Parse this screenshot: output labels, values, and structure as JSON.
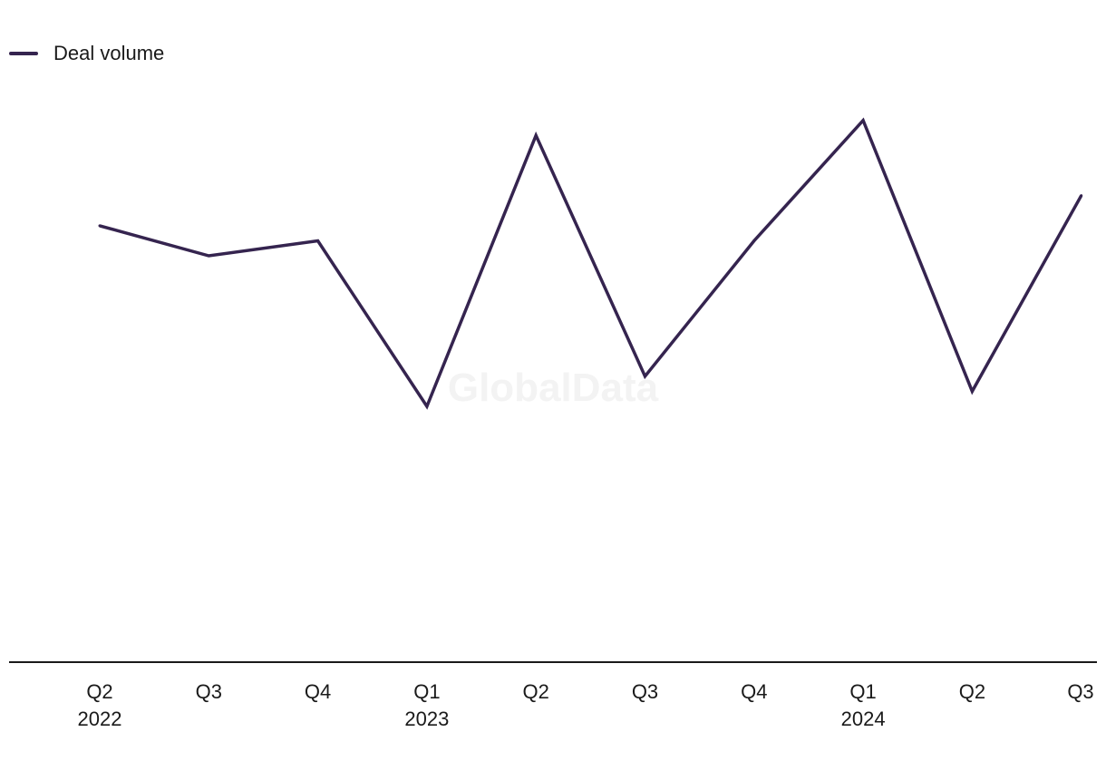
{
  "watermark": "GlobalData",
  "colors": {
    "series": "#35244f",
    "axis": "#1a1a1a"
  },
  "chart_data": {
    "type": "line",
    "title": "",
    "xlabel": "",
    "ylabel": "",
    "categories": [
      "Q2 2022",
      "Q3 2022",
      "Q4 2022",
      "Q1 2023",
      "Q2 2023",
      "Q3 2023",
      "Q4 2023",
      "Q1 2024",
      "Q2 2024",
      "Q3 2024"
    ],
    "x_tick_labels": [
      {
        "quarter": "Q2",
        "year": "2022"
      },
      {
        "quarter": "Q3",
        "year": ""
      },
      {
        "quarter": "Q4",
        "year": ""
      },
      {
        "quarter": "Q1",
        "year": "2023"
      },
      {
        "quarter": "Q2",
        "year": ""
      },
      {
        "quarter": "Q3",
        "year": ""
      },
      {
        "quarter": "Q4",
        "year": ""
      },
      {
        "quarter": "Q1",
        "year": "2024"
      },
      {
        "quarter": "Q2",
        "year": ""
      },
      {
        "quarter": "Q3",
        "year": ""
      }
    ],
    "series": [
      {
        "name": "Deal volume",
        "values": [
          29,
          27,
          28,
          17,
          35,
          19,
          28,
          36,
          18,
          31
        ]
      }
    ],
    "ylim": [
      0,
      44
    ],
    "y_axis_shown": false,
    "grid": false,
    "legend": "top-left"
  }
}
